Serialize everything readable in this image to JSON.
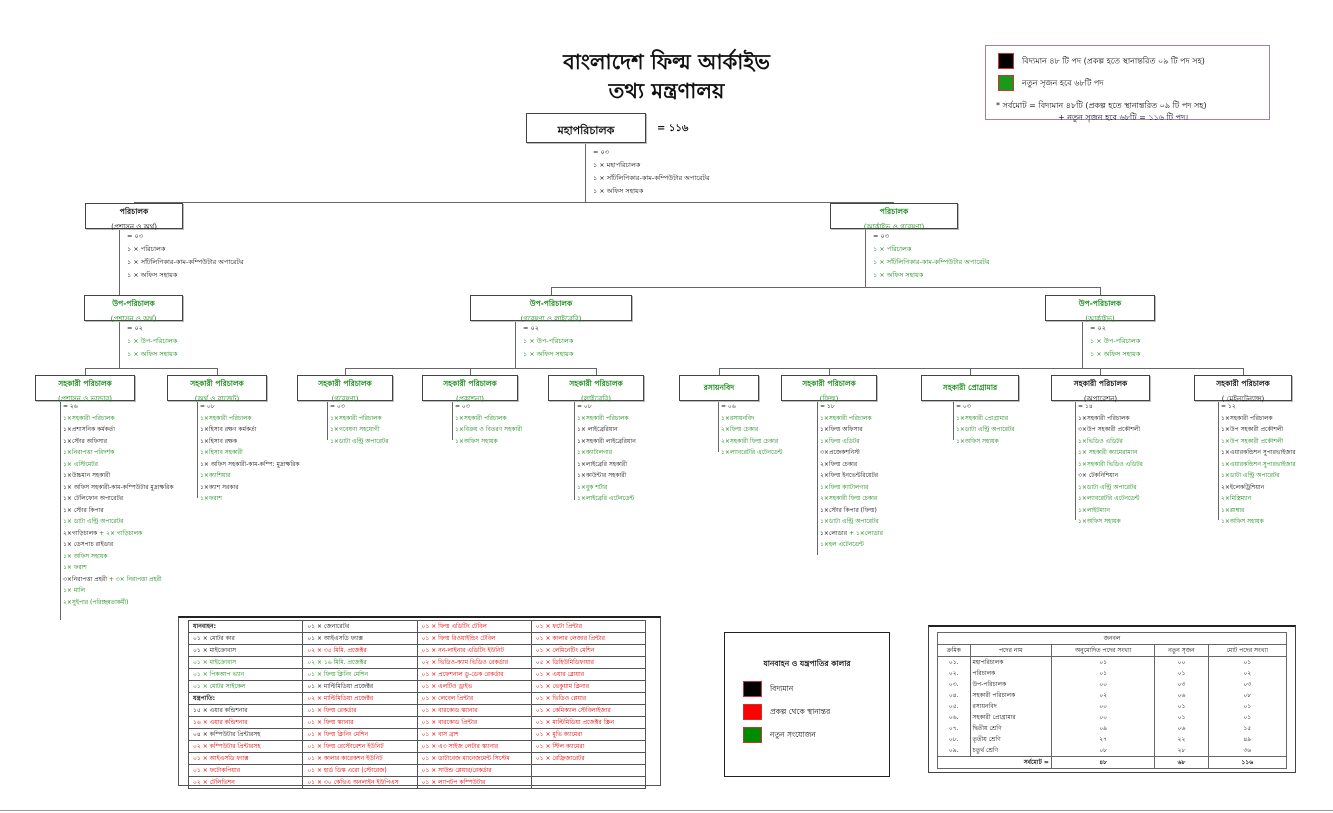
{
  "header": {
    "title": "বাংলাদেশ ফিল্ম আর্কাইভ",
    "subtitle": "তথ্য মন্ত্রণালয়"
  },
  "legend": {
    "existing_color": "#000000",
    "new_color": "#1a9a1a",
    "existing": "বিদ্যমান ৪৮ টি পদ (প্রকল্প হতে স্থানান্তরিত ০৯ টি পদ সহ)",
    "new": "নতুন সৃজন হবে ৬৮টি পদ",
    "total_line1": "* সর্বমোট =  বিদ্যমান ৪৮টি (প্রকল্প হতে স্থানান্তরিত ০৯ টি পদ সহ)",
    "total_line2": "+ নতুন সৃজন হবে ৬৮টি  = ১১৬ টি পদ।"
  },
  "nodes": {
    "dg": {
      "title": "মহাপরিচালক",
      "tc": "k",
      "total": "= ১১৬",
      "items": [
        {
          "t": "= ০৩",
          "c": "k"
        },
        {
          "t": "১ × মহাপরিচালক",
          "c": "k"
        },
        {
          "t": "১ × সাঁটলিপিকার-কাম-কম্পিউটার অপারেটর",
          "c": "k"
        },
        {
          "t": "১ × অফিস সহায়ক",
          "c": "k"
        }
      ]
    },
    "dir1": {
      "title": "পরিচালক",
      "sub": "(প্রশাসন ও অর্থ)",
      "tc": "k",
      "items": [
        {
          "t": "= ০৩",
          "c": "k"
        },
        {
          "t": "১ × পরিচালক",
          "c": "k"
        },
        {
          "t": "১ × সাঁটলিপিকার-কাম-কম্পিউটার অপারেটর",
          "c": "k"
        },
        {
          "t": "১ × অফিস সহায়ক",
          "c": "k"
        }
      ]
    },
    "dir2": {
      "title": "পরিচালক",
      "sub": "(আর্কাইভ ও গবেষণা)",
      "tc": "g",
      "items": [
        {
          "t": "= ০৩",
          "c": "k"
        },
        {
          "t": "১ × পরিচালক",
          "c": "g"
        },
        {
          "t": "১ × সাঁটলিপিকার-কাম-কম্পিউটার অপারেটর",
          "c": "g"
        },
        {
          "t": "১ × অফিস সহায়ক",
          "c": "g"
        }
      ]
    },
    "dyd1": {
      "title": "উপ-পরিচালক",
      "sub": "(প্রশাসন ও অর্থ)",
      "tc": "g",
      "items": [
        {
          "t": "= ০২",
          "c": "k"
        },
        {
          "t": "১ × উপ-পরিচালক",
          "c": "g"
        },
        {
          "t": "১ × অফিস সহায়ক",
          "c": "g"
        }
      ]
    },
    "dyd2": {
      "title": "উপ-পরিচালক",
      "sub": "(গবেষণা ও লাইব্রেরি)",
      "tc": "g",
      "items": [
        {
          "t": "= ০২",
          "c": "k"
        },
        {
          "t": "১ × উপ-পরিচালক",
          "c": "g"
        },
        {
          "t": "১ × অফিস সহায়ক",
          "c": "g"
        }
      ]
    },
    "dyd3": {
      "title": "উপ-পরিচালক",
      "sub": "(আর্কাইভ)",
      "tc": "g",
      "items": [
        {
          "t": "= ০২",
          "c": "k"
        },
        {
          "t": "১ × উপ-পরিচালক",
          "c": "g"
        },
        {
          "t": "১ × অফিস সহায়ক",
          "c": "g"
        }
      ]
    },
    "ad1": {
      "title": "সহকারী পরিচালক",
      "sub": "(প্রশাসন ও ভান্ডার)",
      "tc": "g",
      "items": [
        {
          "t": "= ২৬",
          "c": "k"
        },
        {
          "t": "১×সহকারী পরিচালক",
          "c": "g"
        },
        {
          "t": "১×প্রশাসনিক কর্মকর্তা",
          "c": "k"
        },
        {
          "t": "১×স্টোর অফিসার",
          "c": "k"
        },
        {
          "t": "১×নিরাপত্তা পরিদর্শক",
          "c": "g"
        },
        {
          "t": "১× এস্টিমেটর",
          "c": "g"
        },
        {
          "t": "১×উচ্চমান সহকারী",
          "c": "k"
        },
        {
          "t": "১× অফিস সহকারী-কাম-কম্পিউটার মুদ্রাক্ষরিক",
          "c": "k"
        },
        {
          "t": "১× টেলিফোন অপারেটর",
          "c": "k"
        },
        {
          "t": "১× স্টোর কিপার",
          "c": "k"
        },
        {
          "t": "১× ডাটা এন্ট্রি অপারেটর",
          "c": "g"
        },
        {
          "t": "২×গাড়িচালক",
          "c": "k",
          "t2": " + ২× গাড়িচালক",
          "c2": "g"
        },
        {
          "t": "১× ডেসপাচ রাইডার",
          "c": "k"
        },
        {
          "t": "১× অফিস সহায়ক",
          "c": "g"
        },
        {
          "t": "১× ফরাশ",
          "c": "g"
        },
        {
          "t": "৩×নিরাপত্তা প্রহরী",
          "c": "k",
          "t2": " + ৩× নিরাপত্তা প্রহরী",
          "c2": "g"
        },
        {
          "t": "১× মালি",
          "c": "g"
        },
        {
          "t": "২×সুইপার (পরিচ্ছন্নতাকর্মী)",
          "c": "g"
        }
      ]
    },
    "ad2": {
      "title": "সহকারী পরিচালক",
      "sub": "(অর্থ ও বাজেট)",
      "tc": "g",
      "items": [
        {
          "t": "= ০৮",
          "c": "k"
        },
        {
          "t": "১×সহকারী পরিচালক",
          "c": "g"
        },
        {
          "t": "১×হিসাব রক্ষণ কর্মকর্তা",
          "c": "k"
        },
        {
          "t": "১×হিসাব রক্ষক",
          "c": "k"
        },
        {
          "t": "১×হিসাব সহকারী",
          "c": "g"
        },
        {
          "t": "১× অফিস সহকারী-কাম-কম্পি: মুদ্রাক্ষরিক",
          "c": "k"
        },
        {
          "t": "১×ক্যাশিয়ার",
          "c": "g"
        },
        {
          "t": "১×ক্যাশ সরকার",
          "c": "k"
        },
        {
          "t": "১×ফরাশ",
          "c": "g"
        }
      ]
    },
    "adr": {
      "title": "সহকারী পরিচালক",
      "sub": "(গবেষণা)",
      "tc": "g",
      "items": [
        {
          "t": "= ০৩",
          "c": "k"
        },
        {
          "t": "১×সহকারী পরিচালক",
          "c": "g"
        },
        {
          "t": "১×গবেষণা সহযোগী",
          "c": "g"
        },
        {
          "t": "১×ডাটা এন্ট্রি অপারেটর",
          "c": "g"
        }
      ]
    },
    "adp": {
      "title": "সহকারী পরিচালক",
      "sub": "(প্রকাশনা)",
      "tc": "g",
      "items": [
        {
          "t": "= ০৩",
          "c": "k"
        },
        {
          "t": "১×সহকারী পরিচালক",
          "c": "g"
        },
        {
          "t": "১×বিক্রয় ও বিতরণ সহকারী",
          "c": "g"
        },
        {
          "t": "১×অফিস সহায়ক",
          "c": "g"
        }
      ]
    },
    "adl": {
      "title": "সহকারী পরিচালক",
      "sub": "(লাইব্রেরি)",
      "tc": "g",
      "items": [
        {
          "t": "= ০৮",
          "c": "k"
        },
        {
          "t": "১×সহকারী পরিচালক",
          "c": "g"
        },
        {
          "t": "১× লাইব্রেরিয়ান",
          "c": "k"
        },
        {
          "t": "১×সহকারী লাইব্রেরিয়ান",
          "c": "k"
        },
        {
          "t": "১×ক্যাটালগার",
          "c": "g"
        },
        {
          "t": "১×লাইব্রেরি সহকারী",
          "c": "k"
        },
        {
          "t": "১×কাউন্টার সহকারী",
          "c": "k"
        },
        {
          "t": "১×বুক শর্টার",
          "c": "g"
        },
        {
          "t": "১×লাইব্রেরি এটেনডেন্ট",
          "c": "g"
        }
      ]
    },
    "chem": {
      "title": "রসায়নবিদ",
      "tc": "g",
      "items": [
        {
          "t": "= ০৬",
          "c": "k"
        },
        {
          "t": "১×রসায়নবিদ",
          "c": "g"
        },
        {
          "t": "২×ফিল্ম চেকার",
          "c": "g"
        },
        {
          "t": "২×সহকারী ফিল্ম চেকার",
          "c": "g"
        },
        {
          "t": "১×ল্যাবরেটরি এটেনডেন্ট",
          "c": "g"
        }
      ]
    },
    "adf": {
      "title": "সহকারী পরিচালক",
      "sub": "(ফিল্ম)",
      "tc": "g",
      "items": [
        {
          "t": "= ১৮",
          "c": "k"
        },
        {
          "t": "১×সহকারী পরিচালক",
          "c": "g"
        },
        {
          "t": "১×ফিল্ম অফিসার",
          "c": "k"
        },
        {
          "t": "১×ফিল্ম এডিটর",
          "c": "g"
        },
        {
          "t": "৩×প্রজেকশনিস্ট",
          "c": "k"
        },
        {
          "t": "২×ফিল্ম চেকার",
          "c": "k"
        },
        {
          "t": "২×ফিল্ম ইনভেন্টরিয়েটর",
          "c": "k"
        },
        {
          "t": "১×ফিল্ম ক্যাটালগার",
          "c": "g"
        },
        {
          "t": "২×সহকারী ফিল্ম চেকার",
          "c": "g"
        },
        {
          "t": "১×স্টোর কিপার (ফিল্ম)",
          "c": "k"
        },
        {
          "t": "১×ডাটা এন্ট্রি অপারেটর",
          "c": "g"
        },
        {
          "t": "১×লোডার",
          "c": "k",
          "t2": " + ১×লোডার",
          "c2": "g"
        },
        {
          "t": "১×হল এটেনডেন্ট",
          "c": "g"
        }
      ]
    },
    "ap": {
      "title": "সহকারী প্রোগ্রামার",
      "tc": "g",
      "items": [
        {
          "t": "= ০৩",
          "c": "k"
        },
        {
          "t": "১×সহকারী প্রোগ্রামার",
          "c": "g"
        },
        {
          "t": "১×ডাটা এন্ট্রি অপারেটর",
          "c": "g"
        },
        {
          "t": "১×অফিস সহায়ক",
          "c": "g"
        }
      ]
    },
    "ado": {
      "title": "সহকারী পরিচালক",
      "sub": "(অপারেশন)",
      "tc": "k",
      "items": [
        {
          "t": "= ১৪",
          "c": "k"
        },
        {
          "t": "১×সহকারী পরিচালক",
          "c": "k"
        },
        {
          "t": "৩×উপ সহকারী প্রকৌশলী",
          "c": "k"
        },
        {
          "t": "১×ভিডিও এডিটর",
          "c": "g"
        },
        {
          "t": "১× সহকারী ক্যামেরাম্যান",
          "c": "g"
        },
        {
          "t": "১×সহকারী ভিডিও এডিটর",
          "c": "g"
        },
        {
          "t": "৩× টেকনিশিয়ান",
          "c": "k"
        },
        {
          "t": "১×ডাটা এন্ট্রি অপারেটর",
          "c": "g"
        },
        {
          "t": "১×ল্যাবরেটরি এটেনডেন্ট",
          "c": "g"
        },
        {
          "t": "১×লাইটম্যান",
          "c": "g"
        },
        {
          "t": "১×অফিস সহায়ক",
          "c": "g"
        }
      ]
    },
    "adm": {
      "title": "সহকারী পরিচালক",
      "sub": "( মেইনটেন্যান্স)",
      "tc": "k",
      "items": [
        {
          "t": "= ১২",
          "c": "k"
        },
        {
          "t": "১×সহকারী পরিচালক",
          "c": "k"
        },
        {
          "t": "১×উপ সহকারী প্রকৌশলী",
          "c": "k"
        },
        {
          "t": "১×উপ সহকারী প্রকৌশলী",
          "c": "g"
        },
        {
          "t": "১×এয়ারকন্ডিশন সুপারভাইজার",
          "c": "k"
        },
        {
          "t": "১×এয়ারকন্ডিশন সুপারভাইজার",
          "c": "g"
        },
        {
          "t": "১×ডাটা এন্ট্রি অপারেটর",
          "c": "g"
        },
        {
          "t": "২×ইলেকট্রিশিয়ান",
          "c": "k"
        },
        {
          "t": "২×মিস্ত্রিম্যান",
          "c": "g"
        },
        {
          "t": "১×প্লাম্বার",
          "c": "g"
        },
        {
          "t": "১×অফিস সহায়ক",
          "c": "g"
        }
      ]
    }
  },
  "equipment": {
    "columns": [
      [
        {
          "t": "যানবাহন:",
          "c": "k"
        },
        {
          "t": "০১ × মোটর কার",
          "c": "k"
        },
        {
          "t": "০১ × মাইক্রোবাস",
          "c": "k"
        },
        {
          "t": "০১ × মাইক্রোবাস",
          "c": "g"
        },
        {
          "t": "০১ × পিকআপ ভ্যান",
          "c": "g"
        },
        {
          "t": "০১ × মোটর সাইকেল",
          "c": "g"
        },
        {
          "t": "যন্ত্রপাতি:",
          "c": "k"
        },
        {
          "t": "১৫ × এয়ার কন্ডিশনার",
          "c": "k"
        },
        {
          "t": "১৬ × এয়ার কন্ডিশনার",
          "c": "r"
        },
        {
          "t": "০৪ × কম্পিউটার প্রিন্টারসহ",
          "c": "k"
        },
        {
          "t": "০২ × কম্পিউটার প্রিন্টারসহ",
          "c": "r"
        },
        {
          "t": "০১ × আইএসডি ফ্যাক্স",
          "c": "r"
        },
        {
          "t": "০১ × ফটোকপিয়ার",
          "c": "r"
        },
        {
          "t": "০২ × টেলিভিশন",
          "c": "r"
        }
      ],
      [
        {
          "t": "০১ × জেনারেটর",
          "c": "k"
        },
        {
          "t": "০১ × আইএসডি ফ্যাক্স",
          "c": "k"
        },
        {
          "t": "০২ × ৩৫ মিমি. প্রজেক্টর",
          "c": "r"
        },
        {
          "t": "০২ × ১৬ মিমি. প্রজেক্টর",
          "c": "g"
        },
        {
          "t": "০১ × ফিল্ম ক্লিনিং মেশিন",
          "c": "g"
        },
        {
          "t": "০১ × মাল্টিমিডিয়া প্রজেক্টর",
          "c": "k"
        },
        {
          "t": "০২ × মাল্টিমিডিয়া প্রজেক্টর",
          "c": "r"
        },
        {
          "t": "০১ × ফিল্ম রেকর্ডার",
          "c": "r"
        },
        {
          "t": "০১ × ফিল্ম স্ক্যানার",
          "c": "r"
        },
        {
          "t": "০১ × ফিল্ম ক্লিনিং মেশিন",
          "c": "r"
        },
        {
          "t": "০১ × ফিল্ম রেস্টোরেশন ইউনিট",
          "c": "r"
        },
        {
          "t": "০১ × কালার কারেকশন ইউনিট",
          "c": "r"
        },
        {
          "t": "০১ × হার্ড ডিস্ক এরো (স্টোরেজ)",
          "c": "r"
        },
        {
          "t": "০১ × ৩০ কেভিএ অনলাইন ইউপিএস",
          "c": "r"
        }
      ],
      [
        {
          "t": "০১ × ফিল্ম এডিটিং টেবিল",
          "c": "r"
        },
        {
          "t": "০১ × ফিল্ম রিওয়াইন্ডিং টেবিল",
          "c": "r"
        },
        {
          "t": "০১ × নন-লাইনার এডিটিং ইউনিট",
          "c": "r"
        },
        {
          "t": "০২ × ভিডিও-ক্যাম ভিডিও রেকর্ডার",
          "c": "r"
        },
        {
          "t": "০১ × প্রফেশনাল ডু-ডেক রেকর্ডার",
          "c": "r"
        },
        {
          "t": "০১ × এলটিও ড্রাইভ",
          "c": "r"
        },
        {
          "t": "০১ × লেবেল প্রিন্টার",
          "c": "r"
        },
        {
          "t": "০১ × বারকোড স্ক্যানার",
          "c": "r"
        },
        {
          "t": "০১ × বারকোড প্রিন্টার",
          "c": "r"
        },
        {
          "t": "০১ × বাস ব্রাশ",
          "c": "r"
        },
        {
          "t": "০১ × এ৩ সাইজ লেটার স্ক্যানার",
          "c": "r"
        },
        {
          "t": "০১ × ডাটাবেজ ম্যানেজমেন্ট সিস্টেম",
          "c": "r"
        },
        {
          "t": "০১ × সাউন্ড প্লেয়ার/রেকর্ডার",
          "c": "r"
        },
        {
          "t": "০১ × ল্যাপটপ কম্পিউটার",
          "c": "r"
        }
      ],
      [
        {
          "t": "০১ × ফটো প্রিন্টার",
          "c": "r"
        },
        {
          "t": "০১ × কালার লেজার প্রিন্টার",
          "c": "r"
        },
        {
          "t": "০১ × লেমিনেটিং মেশিন",
          "c": "r"
        },
        {
          "t": "০৫ × ডিহিউমিডিফায়ার",
          "c": "r"
        },
        {
          "t": "০১ × এয়ার ব্লোয়ার",
          "c": "r"
        },
        {
          "t": "০১ × ভেকুয়াম ক্লিনার",
          "c": "r"
        },
        {
          "t": "০১ × ভিডিও প্লেয়ার",
          "c": "r"
        },
        {
          "t": "০১ × কেমিক্যাল স্টেবিলাইজার",
          "c": "r"
        },
        {
          "t": "০১ × মাল্টিমিডিয়া প্রজেক্টর স্ক্রিন",
          "c": "r"
        },
        {
          "t": "০১ × মুভি ক্যামেরা",
          "c": "r"
        },
        {
          "t": "০১ × স্টিল ক্যামেরা",
          "c": "r"
        },
        {
          "t": "০১ × রেফ্রিজারেটর",
          "c": "r"
        },
        {
          "t": "",
          "c": "r"
        },
        {
          "t": "",
          "c": "r"
        }
      ]
    ]
  },
  "color_legend": {
    "title": "যানবাহন ও যন্ত্রপাতির কালার",
    "items": [
      {
        "label": "বিদ্যমান",
        "color": "#000000"
      },
      {
        "label": "প্রকল্প থেকে স্থানান্তর",
        "color": "#ff0000"
      },
      {
        "label": "নতুন সংযোজন",
        "color": "#008c00"
      }
    ]
  },
  "staff_table": {
    "title": "জনবল",
    "headers": [
      "ক্রমিক",
      "পদের নাম",
      "অনুমোদিত পদের সংখ্যা",
      "নতুন সৃজন",
      "মোট পদের সংখ্যা"
    ],
    "rows": [
      [
        "০১.",
        "মহাপরিচালক",
        "০১",
        "০০",
        "০১"
      ],
      [
        "০২.",
        "পরিচালক",
        "০১",
        "০১",
        "০২"
      ],
      [
        "০৩.",
        "উপ-পরিচালক",
        "০০",
        "০৩",
        "০৩"
      ],
      [
        "০৪.",
        "সহকারী পরিচালক",
        "০২",
        "০৬",
        "০৮"
      ],
      [
        "০৫.",
        "রসায়নবিদ",
        "০০",
        "০১",
        "০১"
      ],
      [
        "০৬.",
        "সহকারী প্রোগ্রামার",
        "০০",
        "০১",
        "০১"
      ],
      [
        "০৭.",
        "দ্বিতীয় শ্রেণি",
        "০৯",
        "০৬",
        "১৫"
      ],
      [
        "০৮.",
        "তৃতীয় শ্রেণি",
        "২৭",
        "২২",
        "৪৯"
      ],
      [
        "০৯.",
        "চতুর্থ শ্রেণি",
        "০৮",
        "২৮",
        "৩৬"
      ]
    ],
    "total": [
      "সর্বমোট  =",
      "৪৮",
      "৬৮",
      "১১৬"
    ]
  }
}
